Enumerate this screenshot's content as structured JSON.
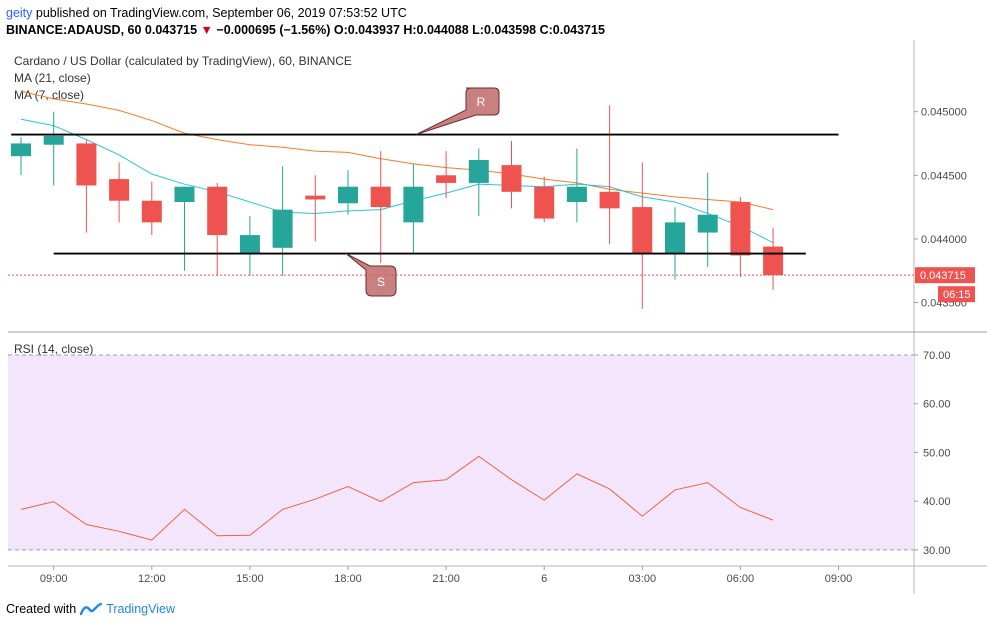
{
  "header": {
    "user": "geity",
    "published": "published on TradingView.com, September 06, 2019 07:53:52 UTC",
    "ticker": "BINANCE:ADAUSD, 60",
    "last": "0.043715",
    "arrow": "▼",
    "change": "−0.000695 (−1.56%)",
    "ohlc": "O:0.043937 H:0.044088 L:0.043598 C:0.043715"
  },
  "footer": {
    "created": "Created with",
    "brand": "TradingView"
  },
  "colors": {
    "up": "#26a69a",
    "down": "#ef5350",
    "ma21": "#f57c2a",
    "ma7": "#26c6da",
    "rsi": "#f0633c",
    "rsi_band": "#f3e5fc",
    "callout": "#c98080"
  },
  "chart_data": [
    {
      "type": "candlestick",
      "title": "Cardano / US Dollar (calculated by TradingView), 60, BINANCE",
      "legend": [
        "MA (21, close)",
        "MA (7, close)"
      ],
      "ylim": [
        0.0433,
        0.0455
      ],
      "y_ticks": [
        "0.045000",
        "0.044500",
        "0.044000",
        "0.043500"
      ],
      "x_ticks": [
        {
          "i": 1,
          "label": "09:00"
        },
        {
          "i": 4,
          "label": "12:00"
        },
        {
          "i": 7,
          "label": "15:00"
        },
        {
          "i": 10,
          "label": "18:00"
        },
        {
          "i": 13,
          "label": "21:00"
        },
        {
          "i": 16,
          "label": "6"
        },
        {
          "i": 19,
          "label": "03:00"
        },
        {
          "i": 22,
          "label": "06:00"
        },
        {
          "i": 25,
          "label": "09:00"
        }
      ],
      "last_price_label": "0.043715",
      "countdown": "06:15",
      "candles": [
        {
          "o": 0.04465,
          "h": 0.0448,
          "l": 0.0445,
          "c": 0.04475
        },
        {
          "o": 0.04474,
          "h": 0.045,
          "l": 0.04442,
          "c": 0.04481
        },
        {
          "o": 0.04475,
          "h": 0.04478,
          "l": 0.04405,
          "c": 0.04442
        },
        {
          "o": 0.04447,
          "h": 0.0446,
          "l": 0.04413,
          "c": 0.0443
        },
        {
          "o": 0.0443,
          "h": 0.04445,
          "l": 0.04403,
          "c": 0.04413
        },
        {
          "o": 0.04429,
          "h": 0.04441,
          "l": 0.04375,
          "c": 0.04441
        },
        {
          "o": 0.04441,
          "h": 0.04444,
          "l": 0.04371,
          "c": 0.04403
        },
        {
          "o": 0.04389,
          "h": 0.04418,
          "l": 0.04371,
          "c": 0.04403
        },
        {
          "o": 0.04393,
          "h": 0.04457,
          "l": 0.04371,
          "c": 0.04423
        },
        {
          "o": 0.04434,
          "h": 0.0445,
          "l": 0.04398,
          "c": 0.04431
        },
        {
          "o": 0.04428,
          "h": 0.04454,
          "l": 0.04419,
          "c": 0.04441
        },
        {
          "o": 0.04441,
          "h": 0.04469,
          "l": 0.04381,
          "c": 0.04425
        },
        {
          "o": 0.04413,
          "h": 0.04459,
          "l": 0.04388,
          "c": 0.04441
        },
        {
          "o": 0.0445,
          "h": 0.04469,
          "l": 0.04432,
          "c": 0.04444
        },
        {
          "o": 0.04444,
          "h": 0.04471,
          "l": 0.04418,
          "c": 0.04462
        },
        {
          "o": 0.04458,
          "h": 0.04477,
          "l": 0.04424,
          "c": 0.04437
        },
        {
          "o": 0.04441,
          "h": 0.04449,
          "l": 0.04413,
          "c": 0.04416
        },
        {
          "o": 0.04429,
          "h": 0.04471,
          "l": 0.04413,
          "c": 0.04441
        },
        {
          "o": 0.04437,
          "h": 0.04505,
          "l": 0.04396,
          "c": 0.04424
        },
        {
          "o": 0.04425,
          "h": 0.0446,
          "l": 0.04345,
          "c": 0.04388
        },
        {
          "o": 0.04388,
          "h": 0.04425,
          "l": 0.04368,
          "c": 0.04413
        },
        {
          "o": 0.04405,
          "h": 0.04452,
          "l": 0.04378,
          "c": 0.04419
        },
        {
          "o": 0.04429,
          "h": 0.04433,
          "l": 0.0437,
          "c": 0.04387
        },
        {
          "o": 0.04394,
          "h": 0.04409,
          "l": 0.0436,
          "c": 0.043715
        }
      ],
      "ma21": [
        0.04516,
        0.0451,
        0.04506,
        0.04501,
        0.04493,
        0.04483,
        0.04478,
        0.04474,
        0.04472,
        0.04469,
        0.04468,
        0.04463,
        0.04459,
        0.04456,
        0.04454,
        0.04451,
        0.04447,
        0.04444,
        0.04439,
        0.04436,
        0.04433,
        0.04431,
        0.04429,
        0.04423
      ],
      "ma7": [
        0.04494,
        0.04489,
        0.04478,
        0.04466,
        0.04451,
        0.04443,
        0.04437,
        0.04429,
        0.04421,
        0.0442,
        0.04422,
        0.04423,
        0.0443,
        0.04436,
        0.04443,
        0.04442,
        0.04441,
        0.04443,
        0.04441,
        0.04433,
        0.04429,
        0.0442,
        0.0441,
        0.04397
      ],
      "annotations": [
        {
          "label": "R",
          "level": 0.04482,
          "from_i": -0.3,
          "to_i": 25.0
        },
        {
          "label": "S",
          "level": 0.043885,
          "from_i": 1.0,
          "to_i": 24.0
        }
      ]
    },
    {
      "type": "line",
      "title": "RSI (14, close)",
      "ylim": [
        27.5,
        73.5
      ],
      "y_ticks": [
        "70.00",
        "60.00",
        "50.00",
        "40.00",
        "30.00"
      ],
      "band": [
        30,
        70
      ],
      "values": [
        38.3,
        39.9,
        35.2,
        33.8,
        32.0,
        38.3,
        32.9,
        33.0,
        38.3,
        40.4,
        43.0,
        39.9,
        43.8,
        44.4,
        49.2,
        44.4,
        40.2,
        45.6,
        42.5,
        36.9,
        42.3,
        43.8,
        38.7,
        36.1
      ]
    }
  ]
}
